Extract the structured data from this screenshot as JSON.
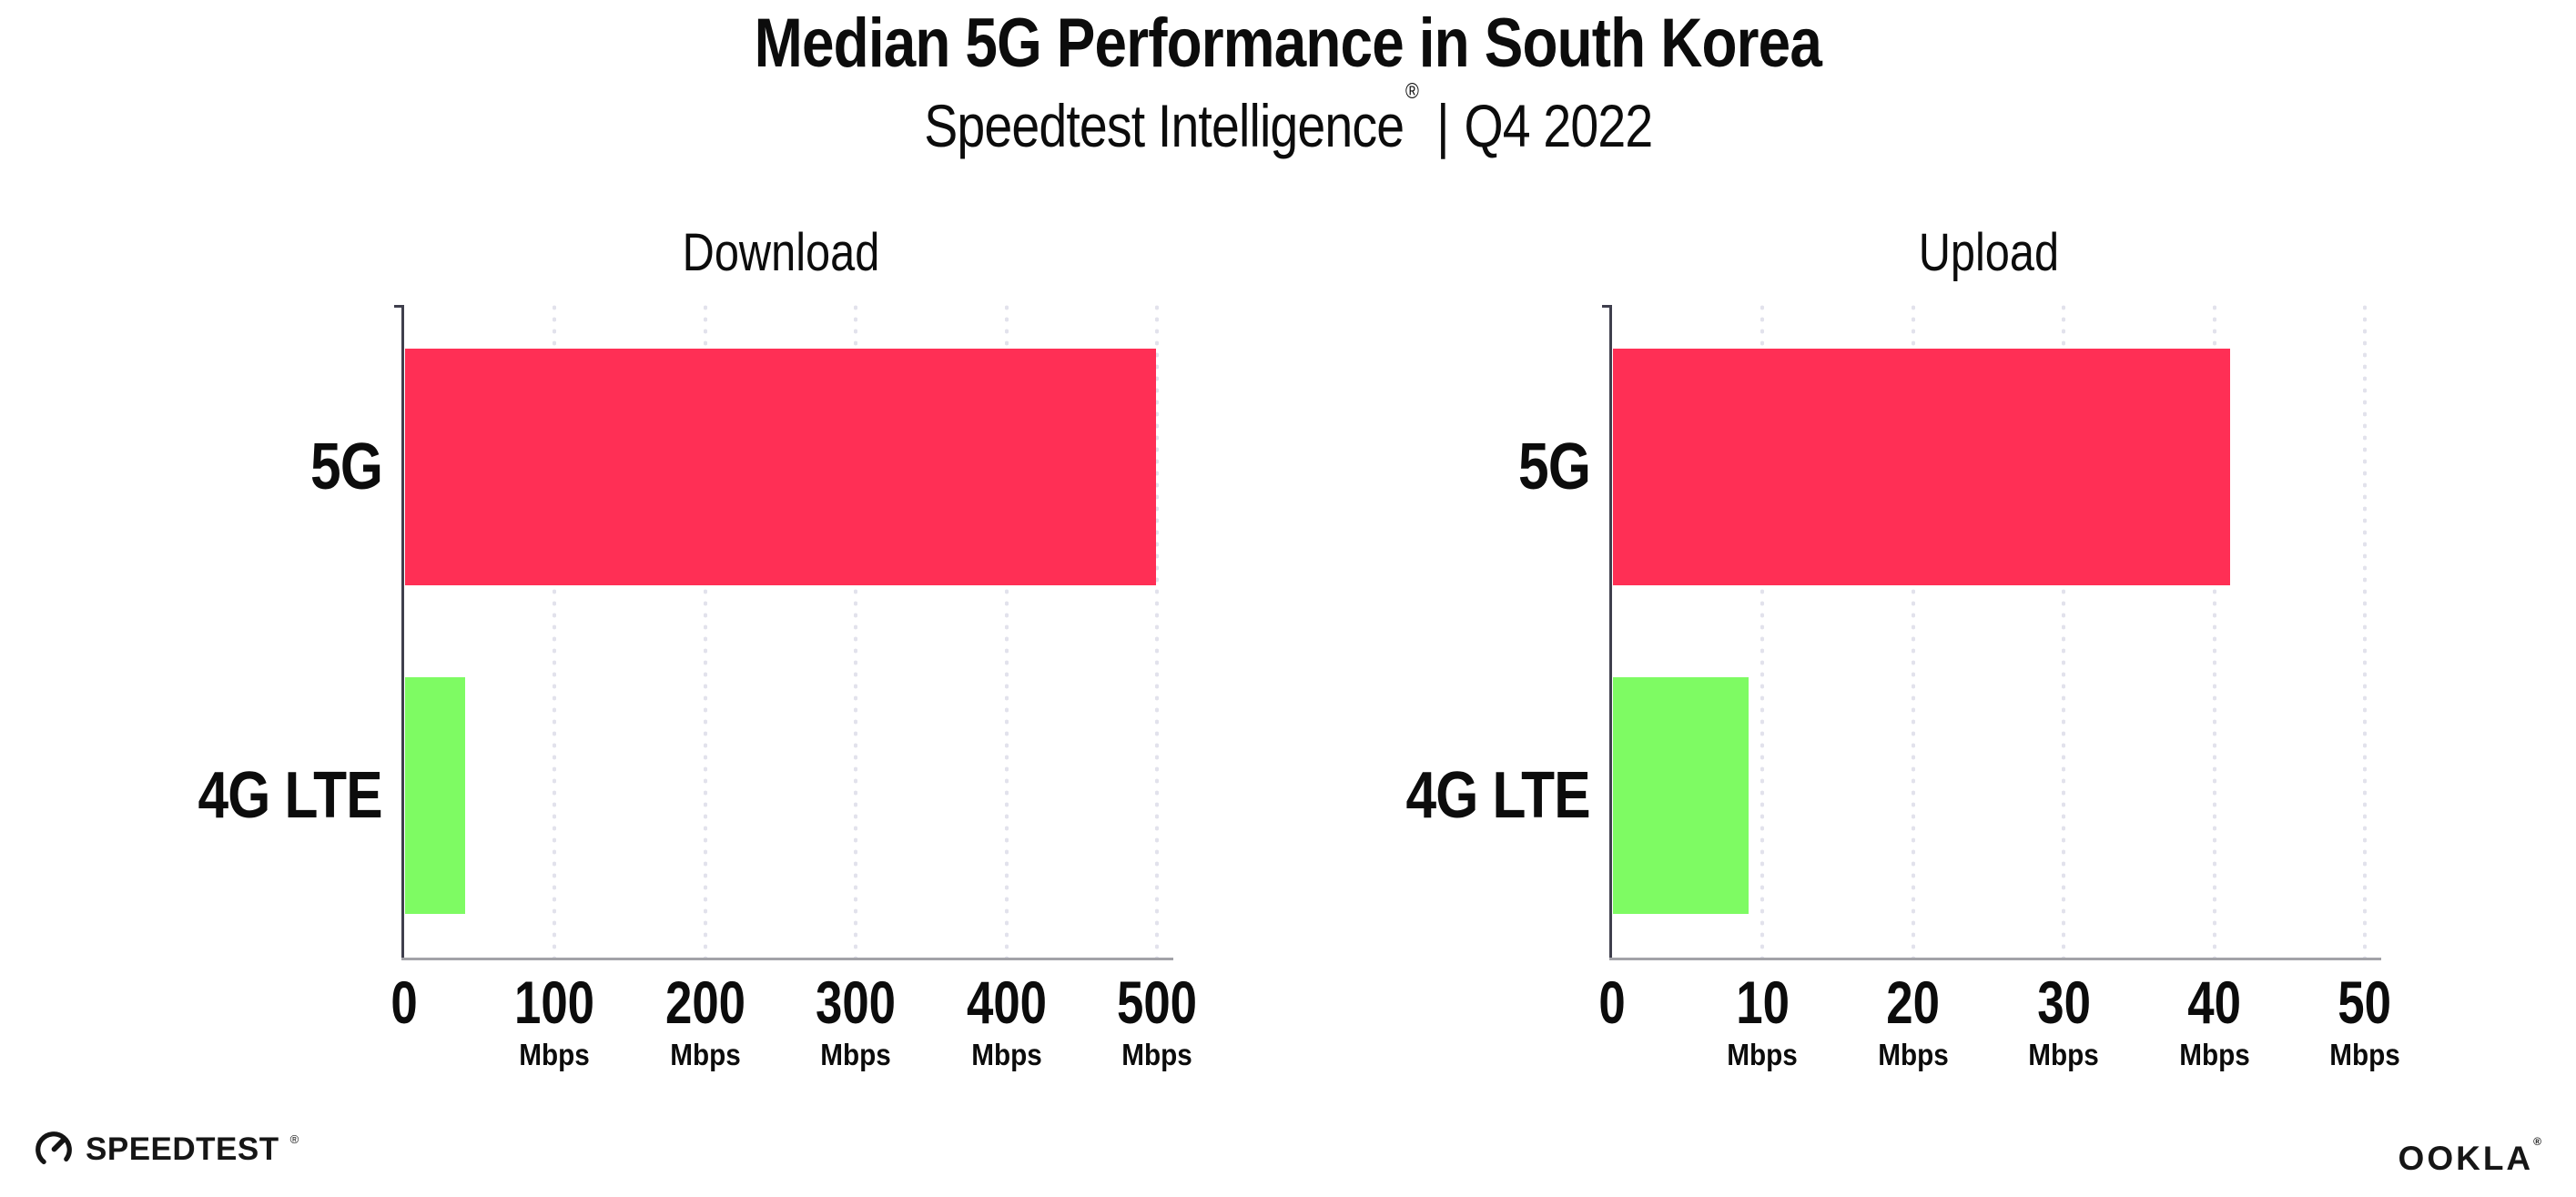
{
  "header": {
    "title": "Median 5G Performance in South Korea",
    "subtitle": {
      "brand": "Speedtest Intelligence",
      "reg_mark": "®",
      "separator": "|",
      "period": "Q4 2022"
    }
  },
  "chart_data": [
    {
      "type": "bar",
      "orientation": "horizontal",
      "title": "Download",
      "categories": [
        "5G",
        "4G LTE"
      ],
      "values": [
        499,
        40
      ],
      "unit": "Mbps",
      "xlabel": "",
      "ylabel": "",
      "xlim": [
        0,
        500
      ],
      "xticks": [
        0,
        100,
        200,
        300,
        400,
        500
      ],
      "bar_colors": [
        "#FF2F55",
        "#7EFB63"
      ],
      "grid": "dotted vertical gridlines at each tick",
      "legend": "none"
    },
    {
      "type": "bar",
      "orientation": "horizontal",
      "title": "Upload",
      "categories": [
        "5G",
        "4G LTE"
      ],
      "values": [
        41,
        9
      ],
      "unit": "Mbps",
      "xlabel": "",
      "ylabel": "",
      "xlim": [
        0,
        50
      ],
      "xticks": [
        0,
        10,
        20,
        30,
        40,
        50
      ],
      "bar_colors": [
        "#FF2F55",
        "#7EFB63"
      ],
      "grid": "dotted vertical gridlines at each tick",
      "legend": "none"
    }
  ],
  "footer": {
    "speedtest_wordmark": "SPEEDTEST",
    "speedtest_reg_mark": "®",
    "speedtest_icon": "gauge-icon",
    "ookla_wordmark": "OOKLA",
    "ookla_reg_mark": "®"
  },
  "colors": {
    "bar_5g": "#FF2F55",
    "bar_4g_lte": "#7EFB63",
    "gridline_dot": "#E2E2EC",
    "y_axis": "#3F3F4D",
    "x_axis": "#A2A2A8",
    "text": "#0C0C0C",
    "background": "#FFFFFF"
  }
}
